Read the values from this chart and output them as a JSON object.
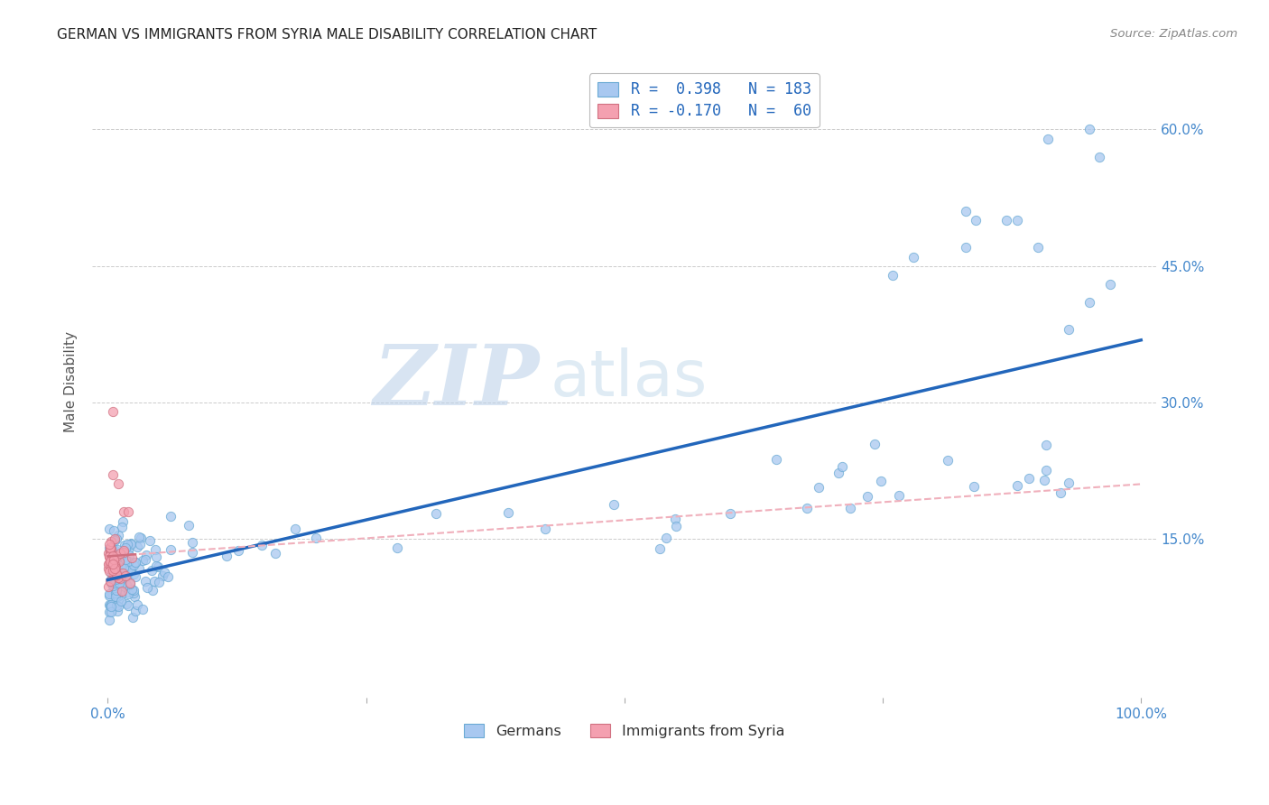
{
  "title": "GERMAN VS IMMIGRANTS FROM SYRIA MALE DISABILITY CORRELATION CHART",
  "source": "Source: ZipAtlas.com",
  "ylabel": "Male Disability",
  "y_tick_values": [
    0.15,
    0.3,
    0.45,
    0.6
  ],
  "y_tick_labels": [
    "15.0%",
    "30.0%",
    "45.0%",
    "60.0%"
  ],
  "x_tick_labels": [
    "0.0%",
    "100.0%"
  ],
  "top_legend_blue_label": "R =  0.398   N = 183",
  "top_legend_pink_label": "R = -0.170   N =  60",
  "bottom_legend_blue": "Germans",
  "bottom_legend_pink": "Immigrants from Syria",
  "watermark_ZIP": "ZIP",
  "watermark_atlas": "atlas",
  "blue_R": 0.398,
  "blue_N": 183,
  "pink_R": -0.17,
  "pink_N": 60,
  "background_color": "#ffffff",
  "scatter_blue_face": "#a8c8f0",
  "scatter_blue_edge": "#6aaad4",
  "scatter_pink_face": "#f4a0b0",
  "scatter_pink_edge": "#d07080",
  "regression_blue_color": "#2266bb",
  "regression_pink_solid_color": "#d07080",
  "regression_pink_dash_color": "#f0b0bc",
  "grid_color": "#cccccc",
  "title_color": "#222222",
  "axis_label_color": "#555555",
  "tick_label_color": "#4488cc",
  "legend_text_color": "#2266bb",
  "source_color": "#888888",
  "ylim_low": -0.025,
  "ylim_high": 0.67,
  "xlim_low": -0.015,
  "xlim_high": 1.015
}
